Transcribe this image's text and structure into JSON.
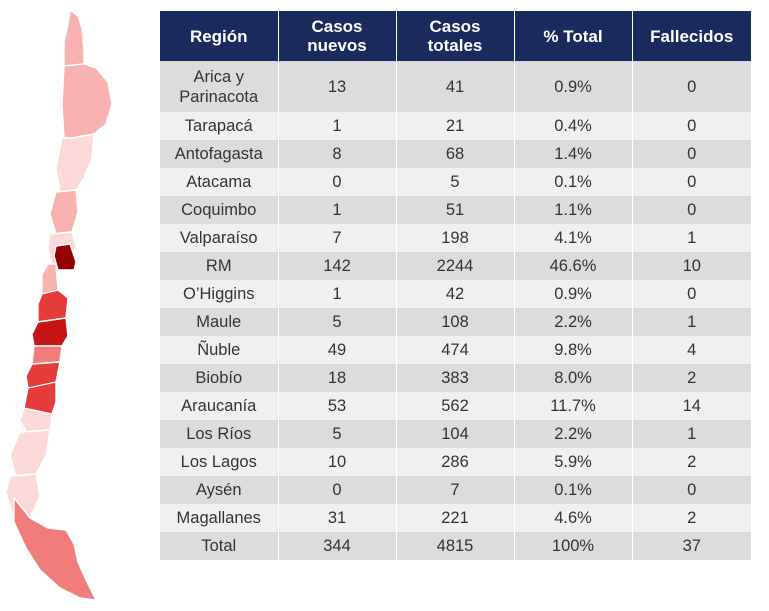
{
  "table": {
    "headers": [
      "Región",
      "Casos\nnuevos",
      "Casos\ntotales",
      "% Total",
      "Fallecidos"
    ],
    "rows": [
      [
        "Arica y\nParinacota",
        "13",
        "41",
        "0.9%",
        "0"
      ],
      [
        "Tarapacá",
        "1",
        "21",
        "0.4%",
        "0"
      ],
      [
        "Antofagasta",
        "8",
        "68",
        "1.4%",
        "0"
      ],
      [
        "Atacama",
        "0",
        "5",
        "0.1%",
        "0"
      ],
      [
        "Coquimbo",
        "1",
        "51",
        "1.1%",
        "0"
      ],
      [
        "Valparaíso",
        "7",
        "198",
        "4.1%",
        "1"
      ],
      [
        "RM",
        "142",
        "2244",
        "46.6%",
        "10"
      ],
      [
        "O’Higgins",
        "1",
        "42",
        "0.9%",
        "0"
      ],
      [
        "Maule",
        "5",
        "108",
        "2.2%",
        "1"
      ],
      [
        "Ñuble",
        "49",
        "474",
        "9.8%",
        "4"
      ],
      [
        "Biobío",
        "18",
        "383",
        "8.0%",
        "2"
      ],
      [
        "Araucanía",
        "53",
        "562",
        "11.7%",
        "14"
      ],
      [
        "Los Ríos",
        "5",
        "104",
        "2.2%",
        "1"
      ],
      [
        "Los Lagos",
        "10",
        "286",
        "5.9%",
        "2"
      ],
      [
        "Aysén",
        "0",
        "7",
        "0.1%",
        "0"
      ],
      [
        "Magallanes",
        "31",
        "221",
        "4.6%",
        "2"
      ],
      [
        "Total",
        "344",
        "4815",
        "100%",
        "37"
      ]
    ]
  },
  "colors": {
    "header_bg": "#1b2a5c",
    "row_dark": "#dcdcdc",
    "row_light": "#f0f0f0",
    "map_lightest": "#fcd9d9",
    "map_light": "#f8b2b2",
    "map_medium": "#f07c7c",
    "map_strong": "#e53b3b",
    "map_dark": "#c81414",
    "map_darkest": "#960000"
  }
}
